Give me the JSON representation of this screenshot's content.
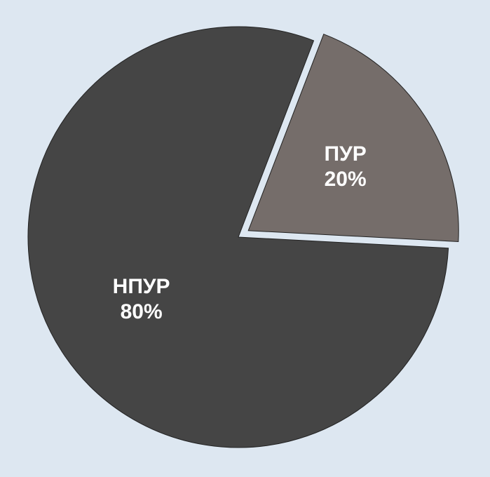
{
  "chart_data": {
    "type": "pie",
    "categories": [
      "ПУР",
      "НПУР"
    ],
    "values": [
      20,
      80
    ],
    "value_labels": [
      "20%",
      "80%"
    ],
    "colors": [
      "#756d6a",
      "#454545"
    ]
  }
}
